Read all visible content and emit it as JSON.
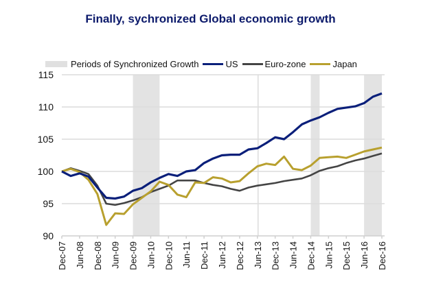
{
  "chart_data": {
    "type": "line",
    "title": "Finally, sychronized Global economic growth",
    "xlabel": "",
    "ylabel": "",
    "ylim": [
      90,
      115
    ],
    "yticks": [
      90,
      95,
      100,
      105,
      110,
      115
    ],
    "grid": true,
    "legend_position": "top",
    "x_tick_labels": [
      "Dec-07",
      "Jun-08",
      "Dec-08",
      "Jun-09",
      "Dec-09",
      "Jun-10",
      "Dec-10",
      "Jun-11",
      "Dec-11",
      "Jun-12",
      "Dec-12",
      "Jun-13",
      "Dec-13",
      "Jun-14",
      "Dec-14",
      "Jun-15",
      "Dec-15",
      "Jun-16",
      "Dec-16"
    ],
    "x": [
      "Dec-07",
      "Mar-08",
      "Jun-08",
      "Sep-08",
      "Dec-08",
      "Mar-09",
      "Jun-09",
      "Sep-09",
      "Dec-09",
      "Mar-10",
      "Jun-10",
      "Sep-10",
      "Dec-10",
      "Mar-11",
      "Jun-11",
      "Sep-11",
      "Dec-11",
      "Mar-12",
      "Jun-12",
      "Sep-12",
      "Dec-12",
      "Mar-13",
      "Jun-13",
      "Sep-13",
      "Dec-13",
      "Mar-14",
      "Jun-14",
      "Sep-14",
      "Dec-14",
      "Mar-15",
      "Jun-15",
      "Sep-15",
      "Dec-15",
      "Mar-16",
      "Jun-16",
      "Sep-16",
      "Dec-16"
    ],
    "series": [
      {
        "name": "US",
        "color": "#0a1f7a",
        "values": [
          100.0,
          99.3,
          99.7,
          99.2,
          97.5,
          95.9,
          95.8,
          96.1,
          97.0,
          97.4,
          98.3,
          99.0,
          99.6,
          99.3,
          100.0,
          100.2,
          101.3,
          102.0,
          102.5,
          102.6,
          102.6,
          103.4,
          103.6,
          104.4,
          105.3,
          105.0,
          106.1,
          107.3,
          107.9,
          108.4,
          109.1,
          109.7,
          109.9,
          110.1,
          110.6,
          111.6,
          112.1
        ]
      },
      {
        "name": "Euro-zone",
        "color": "#444444",
        "values": [
          100.0,
          100.5,
          100.1,
          99.6,
          97.8,
          95.0,
          94.8,
          95.1,
          95.5,
          96.0,
          96.8,
          97.3,
          97.8,
          98.6,
          98.6,
          98.6,
          98.2,
          97.9,
          97.7,
          97.3,
          97.0,
          97.5,
          97.8,
          98.0,
          98.2,
          98.5,
          98.7,
          98.9,
          99.4,
          100.1,
          100.5,
          100.8,
          101.3,
          101.7,
          102.0,
          102.4,
          102.8
        ]
      },
      {
        "name": "Japan",
        "color": "#b8a02e",
        "values": [
          100.0,
          100.4,
          99.9,
          98.7,
          96.5,
          91.7,
          93.5,
          93.4,
          94.9,
          95.9,
          96.9,
          98.4,
          97.9,
          96.4,
          96.0,
          98.3,
          98.2,
          99.1,
          98.9,
          98.3,
          98.5,
          99.7,
          100.8,
          101.2,
          101.0,
          102.3,
          100.4,
          100.2,
          100.9,
          102.1,
          102.2,
          102.3,
          102.1,
          102.6,
          103.1,
          103.4,
          103.7
        ]
      }
    ],
    "shaded_periods": [
      {
        "label": "Periods of Synchronized Growth",
        "start": "Dec-09",
        "end": "Sep-10"
      },
      {
        "label": "Periods of Synchronized Growth",
        "start": "Jun-13",
        "end": "Jun-13"
      },
      {
        "label": "Periods of Synchronized Growth",
        "start": "Dec-14",
        "end": "Mar-15"
      },
      {
        "label": "Periods of Synchronized Growth",
        "start": "Jun-16",
        "end": "Dec-16"
      }
    ],
    "legend": [
      {
        "label": "Periods of Synchronized Growth",
        "kind": "band",
        "color": "#e0e0e0"
      },
      {
        "label": "US",
        "kind": "line",
        "color": "#0a1f7a"
      },
      {
        "label": "Euro-zone",
        "kind": "line",
        "color": "#444444"
      },
      {
        "label": "Japan",
        "kind": "line",
        "color": "#b8a02e"
      }
    ]
  }
}
